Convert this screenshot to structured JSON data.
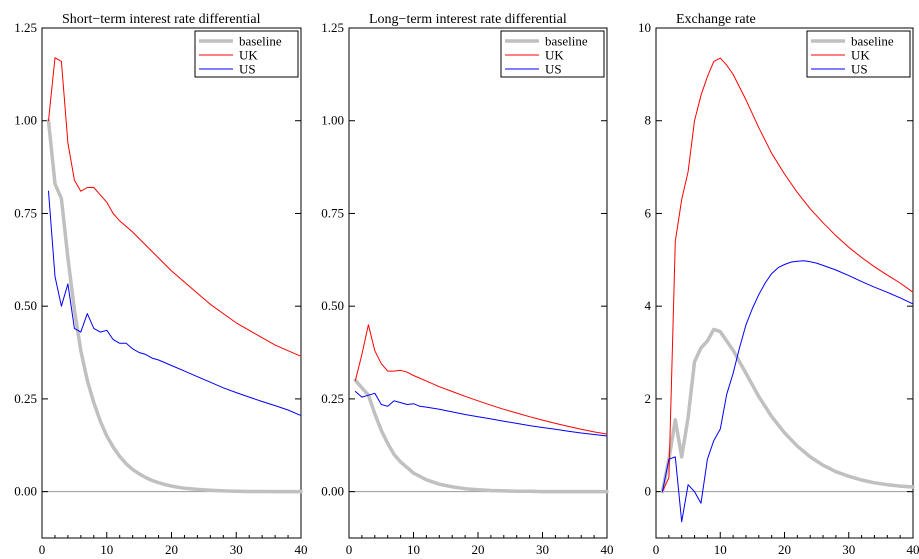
{
  "chart_data": [
    {
      "type": "line",
      "title": "Short−term interest rate differential",
      "xlim": [
        0,
        40
      ],
      "ylim": [
        -0.125,
        1.25
      ],
      "x_ticks": [
        0,
        10,
        20,
        30,
        40
      ],
      "x_tick_labels": [
        "0",
        "10",
        "20",
        "30",
        "40"
      ],
      "y_ticks": [
        0,
        0.25,
        0.5,
        0.75,
        1.0,
        1.25
      ],
      "y_tick_labels": [
        "0.00",
        "0.25",
        "0.50",
        "0.75",
        "1.00",
        "1.25"
      ],
      "legend": "top-right",
      "zero_line": true,
      "series": [
        {
          "name": "baseline",
          "color": "#c0c0c0",
          "x": [
            1,
            2,
            3,
            4,
            5,
            6,
            7,
            8,
            9,
            10,
            11,
            12,
            13,
            14,
            15,
            16,
            17,
            18,
            19,
            20,
            22,
            24,
            26,
            28,
            30,
            32,
            34,
            36,
            38,
            40
          ],
          "y": [
            1.0,
            0.83,
            0.79,
            0.63,
            0.49,
            0.38,
            0.3,
            0.24,
            0.19,
            0.15,
            0.12,
            0.095,
            0.075,
            0.06,
            0.048,
            0.038,
            0.03,
            0.024,
            0.019,
            0.015,
            0.009,
            0.006,
            0.004,
            0.002,
            0.001,
            0.0005,
            0.0003,
            0.0002,
            0.0001,
            0.0
          ]
        },
        {
          "name": "UK",
          "color": "#ff0000",
          "x": [
            1,
            2,
            3,
            4,
            5,
            6,
            7,
            8,
            9,
            10,
            11,
            12,
            14,
            16,
            18,
            20,
            22,
            24,
            26,
            28,
            30,
            32,
            34,
            36,
            38,
            40
          ],
          "y": [
            1.0,
            1.17,
            1.16,
            0.94,
            0.84,
            0.81,
            0.82,
            0.82,
            0.8,
            0.78,
            0.75,
            0.73,
            0.7,
            0.665,
            0.63,
            0.595,
            0.565,
            0.535,
            0.505,
            0.48,
            0.455,
            0.435,
            0.415,
            0.395,
            0.38,
            0.365
          ]
        },
        {
          "name": "US",
          "color": "#0000ff",
          "x": [
            1,
            2,
            3,
            4,
            5,
            6,
            7,
            8,
            9,
            10,
            11,
            12,
            13,
            14,
            15,
            16,
            17,
            18,
            20,
            22,
            24,
            26,
            28,
            30,
            32,
            34,
            36,
            38,
            40
          ],
          "y": [
            0.81,
            0.58,
            0.5,
            0.56,
            0.44,
            0.43,
            0.48,
            0.44,
            0.43,
            0.435,
            0.41,
            0.4,
            0.4,
            0.385,
            0.375,
            0.37,
            0.36,
            0.355,
            0.34,
            0.325,
            0.31,
            0.295,
            0.28,
            0.267,
            0.255,
            0.243,
            0.232,
            0.22,
            0.205
          ]
        }
      ]
    },
    {
      "type": "line",
      "title": "Long−term interest rate differential",
      "xlim": [
        0,
        40
      ],
      "ylim": [
        -0.125,
        1.25
      ],
      "x_ticks": [
        0,
        10,
        20,
        30,
        40
      ],
      "x_tick_labels": [
        "0",
        "10",
        "20",
        "30",
        "40"
      ],
      "y_ticks": [
        0,
        0.25,
        0.5,
        0.75,
        1.0,
        1.25
      ],
      "y_tick_labels": [
        "0.00",
        "0.25",
        "0.50",
        "0.75",
        "1.00",
        "1.25"
      ],
      "legend": "top-right",
      "zero_line": true,
      "series": [
        {
          "name": "baseline",
          "color": "#c0c0c0",
          "x": [
            1,
            2,
            3,
            4,
            5,
            6,
            7,
            8,
            9,
            10,
            12,
            14,
            16,
            18,
            20,
            22,
            24,
            26,
            28,
            30,
            32,
            34,
            36,
            38,
            40
          ],
          "y": [
            0.3,
            0.28,
            0.26,
            0.21,
            0.165,
            0.13,
            0.1,
            0.08,
            0.065,
            0.05,
            0.032,
            0.02,
            0.013,
            0.008,
            0.005,
            0.003,
            0.002,
            0.001,
            0.001,
            0.0,
            0.0,
            0.0,
            0.0,
            0.0,
            0.0
          ]
        },
        {
          "name": "UK",
          "color": "#ff0000",
          "x": [
            1,
            2,
            3,
            4,
            5,
            6,
            7,
            8,
            9,
            10,
            12,
            14,
            16,
            18,
            20,
            22,
            24,
            26,
            28,
            30,
            32,
            34,
            36,
            38,
            40
          ],
          "y": [
            0.3,
            0.37,
            0.45,
            0.38,
            0.345,
            0.325,
            0.325,
            0.327,
            0.322,
            0.313,
            0.298,
            0.283,
            0.27,
            0.257,
            0.245,
            0.233,
            0.222,
            0.212,
            0.202,
            0.193,
            0.184,
            0.176,
            0.168,
            0.161,
            0.155
          ]
        },
        {
          "name": "US",
          "color": "#0000ff",
          "x": [
            1,
            2,
            3,
            4,
            5,
            6,
            7,
            8,
            9,
            10,
            11,
            12,
            14,
            16,
            18,
            20,
            22,
            24,
            26,
            28,
            30,
            32,
            34,
            36,
            38,
            40
          ],
          "y": [
            0.27,
            0.255,
            0.26,
            0.265,
            0.235,
            0.23,
            0.245,
            0.24,
            0.235,
            0.237,
            0.23,
            0.228,
            0.222,
            0.215,
            0.208,
            0.202,
            0.196,
            0.19,
            0.184,
            0.178,
            0.173,
            0.168,
            0.163,
            0.158,
            0.154,
            0.15
          ]
        }
      ]
    },
    {
      "type": "line",
      "title": "Exchange rate",
      "xlim": [
        0,
        40
      ],
      "ylim": [
        -1,
        10
      ],
      "x_ticks": [
        0,
        10,
        20,
        30,
        40
      ],
      "x_tick_labels": [
        "0",
        "10",
        "20",
        "30",
        "40"
      ],
      "y_ticks": [
        0,
        2,
        4,
        6,
        8,
        10
      ],
      "y_tick_labels": [
        "0",
        "2",
        "4",
        "6",
        "8",
        "10"
      ],
      "legend": "top-right",
      "zero_line": true,
      "series": [
        {
          "name": "baseline",
          "color": "#c0c0c0",
          "x": [
            1,
            2,
            3,
            4,
            5,
            6,
            7,
            8,
            9,
            10,
            11,
            12,
            13,
            14,
            15,
            16,
            18,
            20,
            22,
            24,
            26,
            28,
            30,
            32,
            34,
            36,
            38,
            40
          ],
          "y": [
            0,
            0.7,
            1.55,
            0.75,
            1.6,
            2.8,
            3.1,
            3.25,
            3.5,
            3.45,
            3.25,
            3.05,
            2.8,
            2.55,
            2.3,
            2.05,
            1.62,
            1.27,
            0.98,
            0.75,
            0.57,
            0.43,
            0.33,
            0.25,
            0.19,
            0.15,
            0.12,
            0.1
          ]
        },
        {
          "name": "UK",
          "color": "#ff0000",
          "x": [
            1,
            2,
            3,
            4,
            5,
            6,
            7,
            8,
            9,
            10,
            11,
            12,
            14,
            16,
            18,
            20,
            22,
            24,
            26,
            28,
            30,
            32,
            34,
            36,
            38,
            40
          ],
          "y": [
            0,
            0.3,
            5.4,
            6.3,
            6.9,
            8.0,
            8.55,
            8.95,
            9.28,
            9.35,
            9.2,
            9.0,
            8.45,
            7.85,
            7.3,
            6.85,
            6.45,
            6.1,
            5.8,
            5.52,
            5.27,
            5.05,
            4.85,
            4.67,
            4.5,
            4.3
          ]
        },
        {
          "name": "US",
          "color": "#0000ff",
          "x": [
            1,
            2,
            3,
            4,
            5,
            6,
            7,
            8,
            9,
            10,
            11,
            12,
            13,
            14,
            15,
            16,
            17,
            18,
            19,
            20,
            21,
            22,
            23,
            24,
            25,
            26,
            28,
            30,
            32,
            34,
            36,
            38,
            40
          ],
          "y": [
            0,
            0.7,
            0.75,
            -0.65,
            0.15,
            0.0,
            -0.25,
            0.7,
            1.1,
            1.35,
            2.1,
            2.55,
            3.1,
            3.6,
            3.95,
            4.25,
            4.5,
            4.7,
            4.83,
            4.9,
            4.95,
            4.97,
            4.98,
            4.96,
            4.93,
            4.88,
            4.78,
            4.66,
            4.53,
            4.41,
            4.3,
            4.18,
            4.05
          ]
        }
      ]
    }
  ]
}
